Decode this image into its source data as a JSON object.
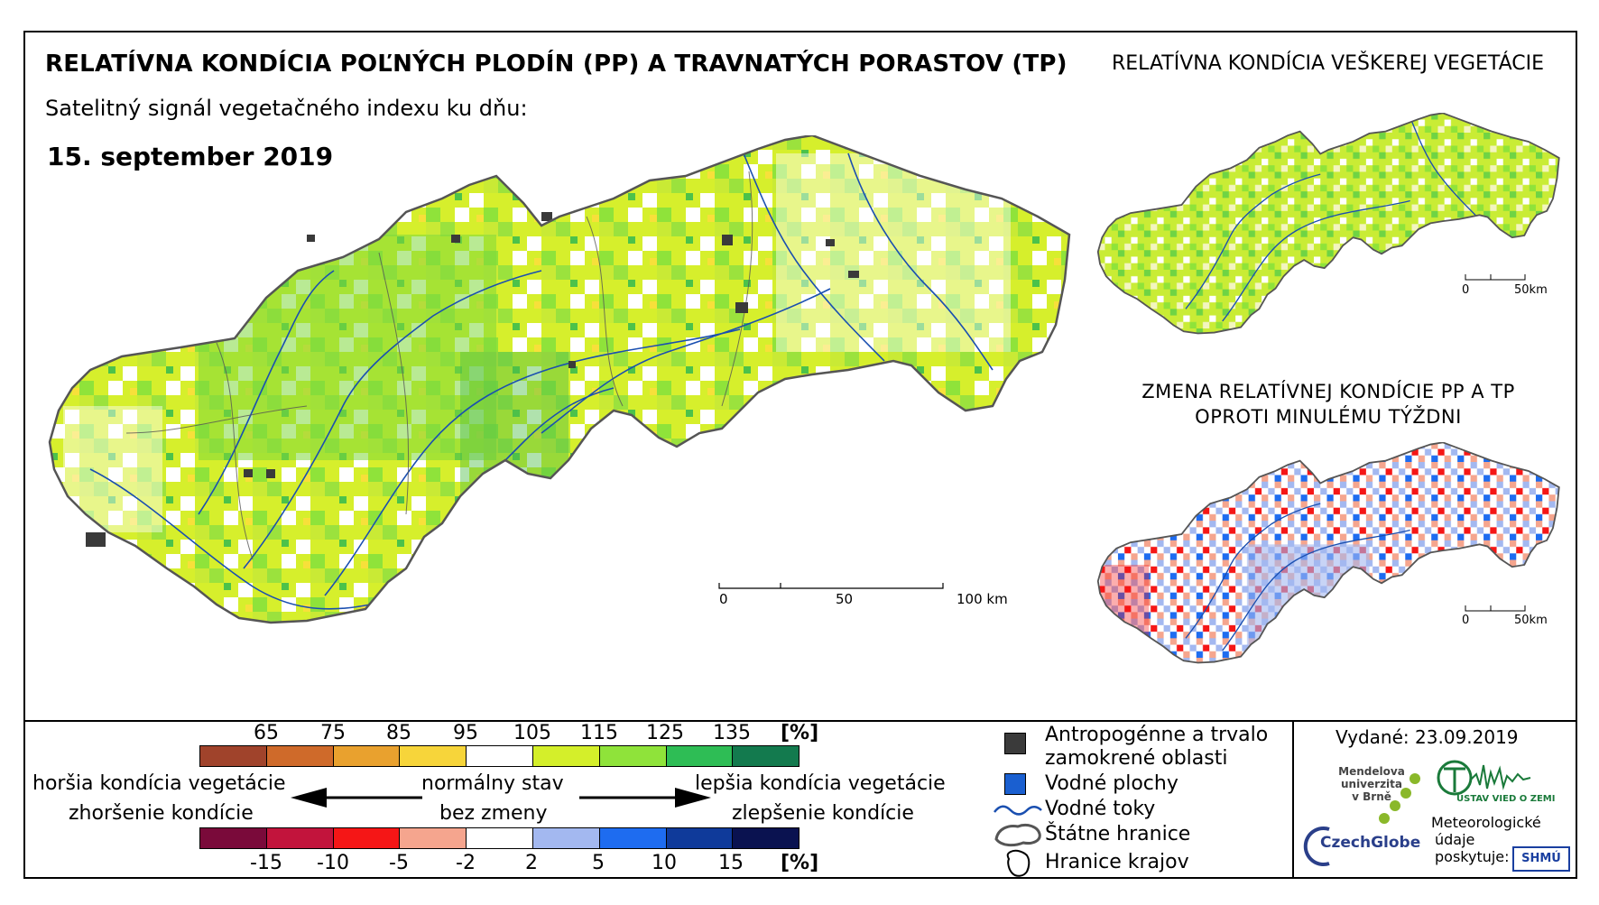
{
  "header": {
    "title": "RELATÍVNA KONDÍCIA POĽNÝCH PLODÍN (PP) A TRAVNATÝCH PORASTOV (TP)",
    "subtitle": "Satelitný signál vegetačného indexu ku dňu:",
    "date": "15. september 2019"
  },
  "main_map": {
    "scale": {
      "labels": [
        "0",
        "50",
        "100 km"
      ]
    }
  },
  "inset_vegetation": {
    "title": "RELATÍVNA KONDÍCIA VEŠKEREJ VEGETÁCIE",
    "scale": {
      "labels": [
        "0",
        "50km"
      ]
    }
  },
  "inset_change": {
    "title_line1": "ZMENA RELATÍVNEJ KONDÍCIE PP A TP",
    "title_line2": "OPROTI MINULÉMU TÝŽDNI",
    "scale": {
      "labels": [
        "0",
        "50km"
      ]
    }
  },
  "legend": {
    "condition_ticks": [
      "65",
      "75",
      "85",
      "95",
      "105",
      "115",
      "125",
      "135"
    ],
    "condition_unit": "[%]",
    "condition_colors": [
      "#a0432b",
      "#cf6a2a",
      "#e9a12e",
      "#f7d53a",
      "#ffffff",
      "#d4ef2a",
      "#8fe33a",
      "#2ebd55",
      "#137a4e"
    ],
    "change_ticks": [
      "-15",
      "-10",
      "-5",
      "-2",
      "2",
      "5",
      "10",
      "15"
    ],
    "change_unit": "[%]",
    "change_colors": [
      "#7a0a3a",
      "#c2143c",
      "#f51616",
      "#f5a58e",
      "#ffffff",
      "#a3b8f0",
      "#1e6cf0",
      "#0f3a9a",
      "#0a1250"
    ],
    "worse_condition": "horšia kondícia vegetácie",
    "worse_change": "zhoršenie kondície",
    "normal_state": "normálny stav",
    "no_change": "bez zmeny",
    "better_condition": "lepšia kondícia vegetácie",
    "better_change": "zlepšenie kondície"
  },
  "map_key": {
    "anthropogenic_line1": "Antropogénne a trvalo",
    "anthropogenic_line2": "zamokrené oblasti",
    "water_areas": "Vodné plochy",
    "water_streams": "Vodné toky",
    "state_border": "Štátne hranice",
    "region_border": "Hranice krajov",
    "colors": {
      "anthropogenic": "#3a3a3a",
      "water_area": "#1a5fd0",
      "water_stream": "#1a4fb0"
    }
  },
  "credits": {
    "issued": "Vydané: 23.09.2019",
    "mendel_line1": "Mendelova",
    "mendel_line2": "univerzita",
    "mendel_line3": "v Brně",
    "czechglobe": "CzechGlobe",
    "ustav": "ÚSTAV VIED O ZEMI",
    "meteo_line1": "Meteorologické",
    "meteo_line2": "údaje",
    "meteo_line3": "poskytuje:",
    "shmu": "SHMÚ"
  }
}
